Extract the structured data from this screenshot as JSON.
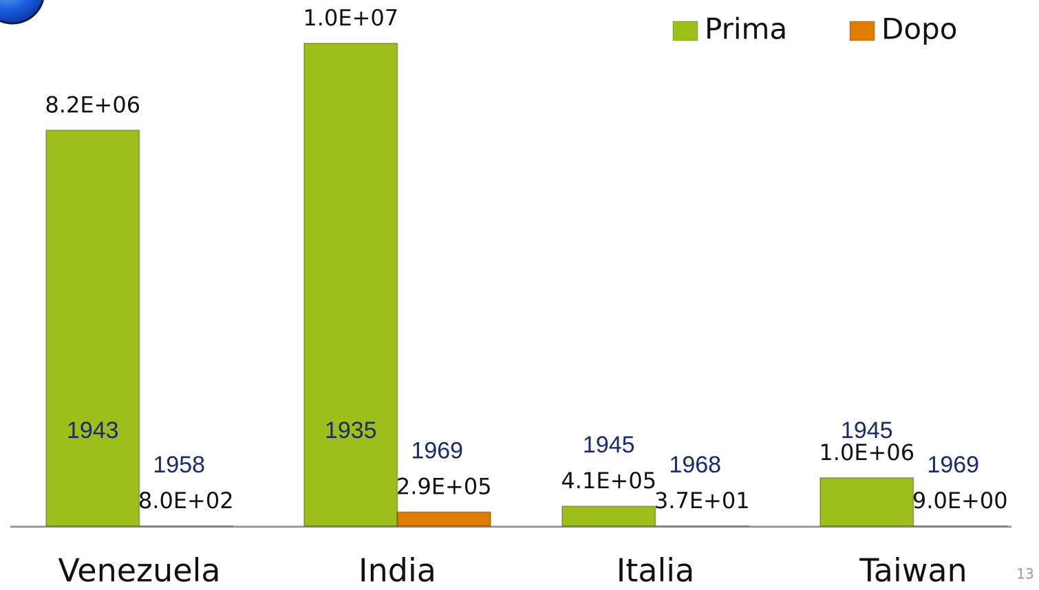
{
  "chart_data": {
    "type": "bar",
    "categories": [
      "Venezuela",
      "India",
      "Italia",
      "Taiwan"
    ],
    "series": [
      {
        "name": "Prima",
        "color": "#9dbf1c",
        "values": [
          8200000,
          10000000,
          410000,
          1000000
        ],
        "value_labels": [
          "8.2E+06",
          "1.0E+07",
          "4.1E+05",
          "1.0E+06"
        ],
        "year_labels": [
          "1943",
          "1935",
          "1945",
          "1945"
        ]
      },
      {
        "name": "Dopo",
        "color": "#e07c00",
        "values": [
          800,
          290000,
          37,
          9
        ],
        "value_labels": [
          "8.0E+02",
          "2.9E+05",
          "3.7E+01",
          "9.0E+00"
        ],
        "year_labels": [
          "1958",
          "1969",
          "1968",
          "1969"
        ]
      }
    ],
    "legend": "top-right"
  },
  "page_number": "13"
}
